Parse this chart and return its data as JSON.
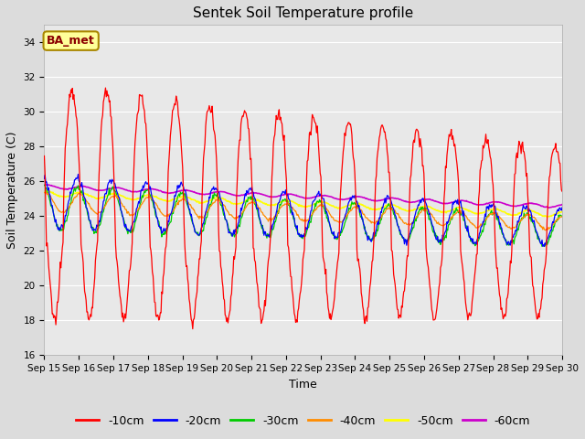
{
  "title": "Sentek Soil Temperature profile",
  "xlabel": "Time",
  "ylabel": "Soil Temperature (C)",
  "ylim": [
    16,
    35
  ],
  "yticks": [
    16,
    18,
    20,
    22,
    24,
    26,
    28,
    30,
    32,
    34
  ],
  "annotation": "BA_met",
  "annotation_color": "#8B0000",
  "annotation_bg": "#FFFF99",
  "series": {
    "-10cm": {
      "color": "#FF0000",
      "zorder": 5
    },
    "-20cm": {
      "color": "#0000FF",
      "zorder": 4
    },
    "-30cm": {
      "color": "#00CC00",
      "zorder": 3
    },
    "-40cm": {
      "color": "#FF8C00",
      "zorder": 3
    },
    "-50cm": {
      "color": "#FFFF00",
      "zorder": 2
    },
    "-60cm": {
      "color": "#CC00CC",
      "zorder": 2
    }
  },
  "x_tick_labels": [
    "Sep 15",
    "Sep 16",
    "Sep 17",
    "Sep 18",
    "Sep 19",
    "Sep 20",
    "Sep 21",
    "Sep 22",
    "Sep 23",
    "Sep 24",
    "Sep 25",
    "Sep 26",
    "Sep 27",
    "Sep 28",
    "Sep 29",
    "Sep 30"
  ],
  "n_days": 15,
  "pts_per_day": 48
}
